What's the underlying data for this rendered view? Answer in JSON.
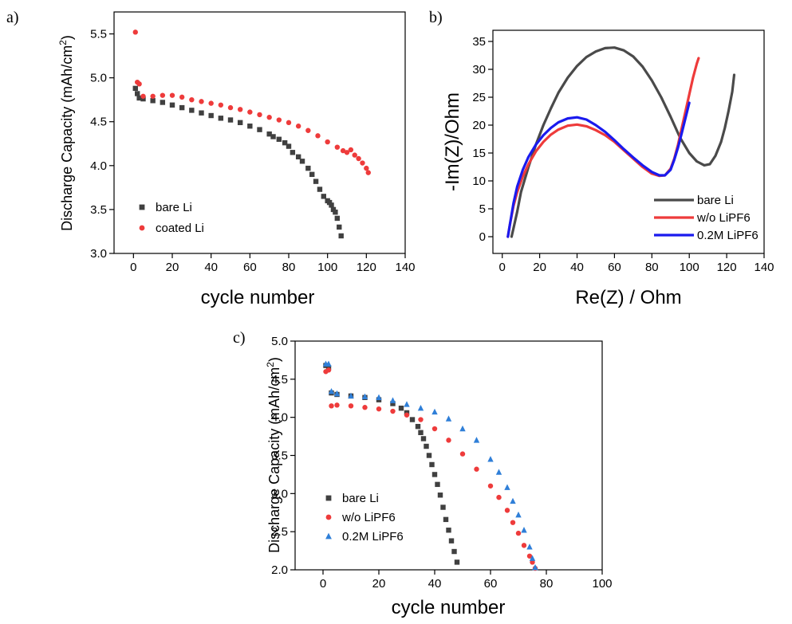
{
  "chart_data": [
    {
      "panel_label": "a)",
      "type": "scatter",
      "xlabel": "cycle number",
      "ylabel": "Discharge Capacity (mAh/cm",
      "ylabel_sup": "2",
      "ylabel_end": ")",
      "xlim": [
        -10,
        140
      ],
      "ylim": [
        3.0,
        5.75
      ],
      "xticks": [
        0,
        20,
        40,
        60,
        80,
        100,
        120,
        140
      ],
      "yticks": [
        3.0,
        3.5,
        4.0,
        4.5,
        5.0,
        5.5
      ],
      "legend": "lower-left",
      "series": [
        {
          "name": "bare Li",
          "color": "#404040",
          "marker": "square",
          "x": [
            1,
            2,
            3,
            5,
            10,
            15,
            20,
            25,
            30,
            35,
            40,
            45,
            50,
            55,
            60,
            65,
            70,
            72,
            75,
            78,
            80,
            82,
            85,
            87,
            90,
            92,
            94,
            96,
            98,
            100,
            101,
            102,
            103,
            104,
            105,
            106,
            107
          ],
          "y": [
            4.88,
            4.82,
            4.77,
            4.76,
            4.74,
            4.72,
            4.69,
            4.66,
            4.63,
            4.6,
            4.57,
            4.54,
            4.52,
            4.49,
            4.45,
            4.41,
            4.36,
            4.33,
            4.3,
            4.26,
            4.22,
            4.15,
            4.1,
            4.05,
            3.97,
            3.9,
            3.82,
            3.73,
            3.65,
            3.6,
            3.58,
            3.55,
            3.5,
            3.47,
            3.4,
            3.3,
            3.2
          ]
        },
        {
          "name": "coated Li",
          "color": "#ee3b3b",
          "marker": "circle",
          "x": [
            1,
            2,
            3,
            5,
            10,
            15,
            20,
            25,
            30,
            35,
            40,
            45,
            50,
            55,
            60,
            65,
            70,
            75,
            80,
            85,
            90,
            95,
            100,
            105,
            108,
            110,
            112,
            114,
            116,
            118,
            120,
            121
          ],
          "y": [
            5.52,
            4.95,
            4.93,
            4.79,
            4.79,
            4.8,
            4.8,
            4.78,
            4.75,
            4.73,
            4.71,
            4.69,
            4.66,
            4.64,
            4.61,
            4.58,
            4.55,
            4.52,
            4.49,
            4.45,
            4.4,
            4.34,
            4.27,
            4.21,
            4.17,
            4.15,
            4.18,
            4.12,
            4.08,
            4.03,
            3.97,
            3.92
          ]
        }
      ]
    },
    {
      "panel_label": "b)",
      "type": "line",
      "xlabel": "Re(Z) / Ohm",
      "ylabel": "-Im(Z)/Ohm",
      "xlim": [
        -5,
        140
      ],
      "ylim": [
        -3,
        37
      ],
      "xticks": [
        0,
        20,
        40,
        60,
        80,
        100,
        120,
        140
      ],
      "yticks": [
        0,
        5,
        10,
        15,
        20,
        25,
        30,
        35
      ],
      "legend": "lower-right",
      "series": [
        {
          "name": "bare Li",
          "color": "#4a4a4a",
          "x": [
            5,
            6,
            8,
            10,
            14,
            18,
            22,
            26,
            30,
            35,
            40,
            45,
            50,
            55,
            60,
            65,
            70,
            75,
            80,
            85,
            90,
            95,
            100,
            104,
            108,
            111,
            114,
            117,
            119,
            121,
            123,
            124
          ],
          "y": [
            0,
            1.5,
            4.5,
            8,
            12.5,
            16.5,
            20,
            23,
            25.8,
            28.5,
            30.6,
            32.2,
            33.2,
            33.8,
            33.9,
            33.4,
            32.3,
            30.5,
            28,
            25,
            21.5,
            17.8,
            15,
            13.5,
            12.8,
            13,
            14.5,
            17,
            19.5,
            22.5,
            26,
            29
          ]
        },
        {
          "name": "w/o LiPF6",
          "color": "#ee3b3b",
          "x": [
            3,
            4,
            6,
            8,
            11,
            14,
            18,
            22,
            26,
            30,
            35,
            40,
            45,
            50,
            55,
            60,
            65,
            70,
            75,
            80,
            84,
            87,
            90,
            92,
            94,
            96,
            98,
            100,
            102,
            104,
            105
          ],
          "y": [
            0,
            2,
            5.5,
            8,
            10.8,
            13,
            15.3,
            17,
            18.3,
            19.2,
            19.9,
            20.1,
            19.8,
            19.1,
            18.2,
            17,
            15.5,
            14,
            12.5,
            11.3,
            10.9,
            11,
            12.2,
            14,
            16.5,
            19.5,
            22.5,
            25.5,
            28.5,
            31,
            32
          ]
        },
        {
          "name": "0.2M LiPF6",
          "color": "#1a1aee",
          "x": [
            3,
            4,
            6,
            8,
            11,
            14,
            18,
            22,
            26,
            30,
            35,
            40,
            45,
            50,
            55,
            60,
            65,
            70,
            75,
            80,
            84,
            87,
            90,
            92,
            94,
            96,
            98,
            100
          ],
          "y": [
            0,
            2,
            6,
            9,
            12,
            14.3,
            16.5,
            18.2,
            19.5,
            20.5,
            21.2,
            21.4,
            21,
            20,
            18.8,
            17.3,
            15.7,
            14.2,
            12.8,
            11.6,
            11,
            11,
            12,
            13.8,
            16,
            18.6,
            21.3,
            24
          ]
        }
      ]
    },
    {
      "panel_label": "c)",
      "type": "scatter",
      "xlabel": "cycle number",
      "ylabel": "Discharge Capacity (mAh/cm",
      "ylabel_sup": "2",
      "ylabel_end": ")",
      "xlim": [
        -10,
        100
      ],
      "ylim": [
        2.0,
        5.0
      ],
      "xticks": [
        0,
        20,
        40,
        60,
        80,
        100
      ],
      "yticks": [
        2.0,
        2.5,
        3.0,
        3.5,
        4.0,
        4.5,
        5.0
      ],
      "legend": "lower-left",
      "series": [
        {
          "name": "bare Li",
          "color": "#404040",
          "marker": "square",
          "x": [
            1,
            2,
            3,
            5,
            10,
            15,
            20,
            25,
            28,
            30,
            32,
            34,
            35,
            36,
            37,
            38,
            39,
            40,
            41,
            42,
            43,
            44,
            45,
            46,
            47,
            48
          ],
          "y": [
            4.68,
            4.65,
            4.32,
            4.3,
            4.28,
            4.26,
            4.23,
            4.18,
            4.12,
            4.06,
            3.97,
            3.88,
            3.8,
            3.72,
            3.62,
            3.5,
            3.38,
            3.25,
            3.12,
            2.98,
            2.82,
            2.66,
            2.52,
            2.38,
            2.24,
            2.1
          ]
        },
        {
          "name": "w/o LiPF6",
          "color": "#ee3b3b",
          "marker": "circle",
          "x": [
            1,
            2,
            3,
            5,
            10,
            15,
            20,
            25,
            30,
            35,
            40,
            45,
            50,
            55,
            60,
            63,
            66,
            68,
            70,
            72,
            74,
            75,
            76
          ],
          "y": [
            4.6,
            4.62,
            4.15,
            4.16,
            4.15,
            4.13,
            4.11,
            4.08,
            4.03,
            3.97,
            3.85,
            3.7,
            3.52,
            3.32,
            3.1,
            2.95,
            2.78,
            2.62,
            2.48,
            2.32,
            2.18,
            2.1,
            2.02
          ]
        },
        {
          "name": "0.2M LiPF6",
          "color": "#2f7fd8",
          "marker": "triangle",
          "x": [
            1,
            2,
            3,
            5,
            10,
            15,
            20,
            25,
            30,
            35,
            40,
            45,
            50,
            55,
            60,
            63,
            66,
            68,
            70,
            72,
            74,
            75,
            76
          ],
          "y": [
            4.7,
            4.7,
            4.34,
            4.31,
            4.28,
            4.27,
            4.26,
            4.22,
            4.17,
            4.12,
            4.07,
            3.98,
            3.85,
            3.7,
            3.45,
            3.28,
            3.08,
            2.9,
            2.72,
            2.52,
            2.3,
            2.15,
            2.03
          ]
        }
      ]
    }
  ]
}
